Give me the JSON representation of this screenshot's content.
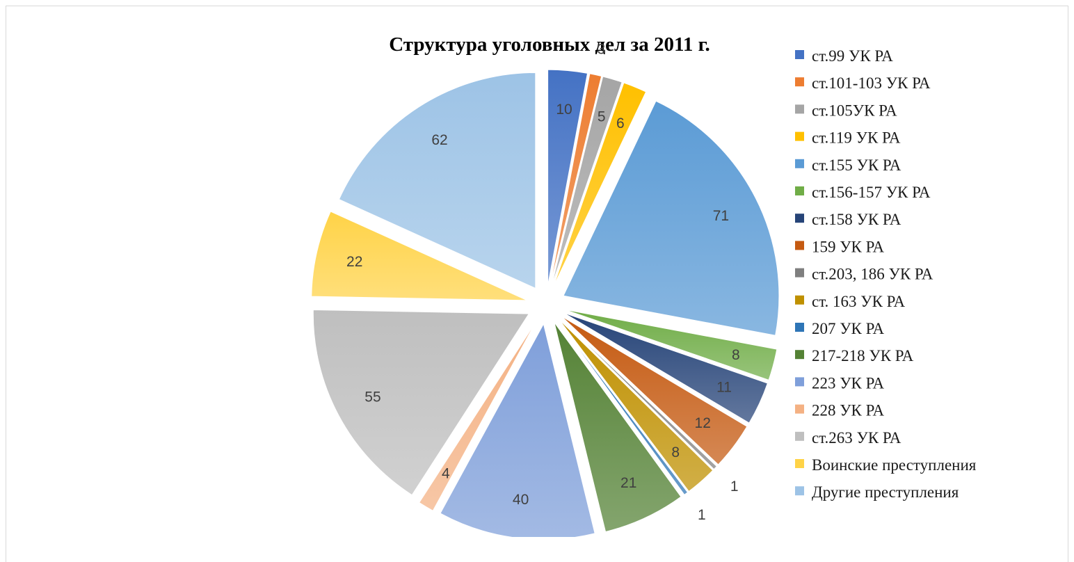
{
  "chart_data": {
    "type": "pie",
    "title": "Структура уголовных дел за 2011 г.",
    "legend_position": "right",
    "exploded": true,
    "slices": [
      {
        "label": "ст.99 УК РА",
        "value": 10,
        "color": "#4472c4"
      },
      {
        "label": "ст.101-103 УК РА",
        "value": 3,
        "color": "#ed7d31"
      },
      {
        "label": "ст.105УК РА",
        "value": 5,
        "color": "#a5a5a5"
      },
      {
        "label": "ст.119 УК РА",
        "value": 6,
        "color": "#ffc000"
      },
      {
        "label": "ст.155 УК РА",
        "value": 71,
        "color": "#5b9bd5"
      },
      {
        "label": "ст.156-157 УК РА",
        "value": 8,
        "color": "#70ad47"
      },
      {
        "label": "ст.158 УК РА",
        "value": 11,
        "color": "#264478"
      },
      {
        "label": "159 УК РА",
        "value": 12,
        "color": "#c55a11"
      },
      {
        "label": "ст.203, 186 УК РА",
        "value": 1,
        "color": "#7f7f7f"
      },
      {
        "label": "ст. 163 УК РА",
        "value": 8,
        "color": "#bf9000"
      },
      {
        "label": "207 УК РА",
        "value": 1,
        "color": "#2e75b6"
      },
      {
        "label": "217-218 УК РА",
        "value": 21,
        "color": "#548235"
      },
      {
        "label": "223 УК РА",
        "value": 40,
        "color": "#7f9fda"
      },
      {
        "label": "228 УК РА",
        "value": 4,
        "color": "#f4b183"
      },
      {
        "label": "ст.263 УК РА",
        "value": 55,
        "color": "#bfbfbf"
      },
      {
        "label": "Воинские преступления",
        "value": 22,
        "color": "#ffd347"
      },
      {
        "label": "Другие преступления",
        "value": 62,
        "color": "#9dc3e6"
      }
    ]
  }
}
